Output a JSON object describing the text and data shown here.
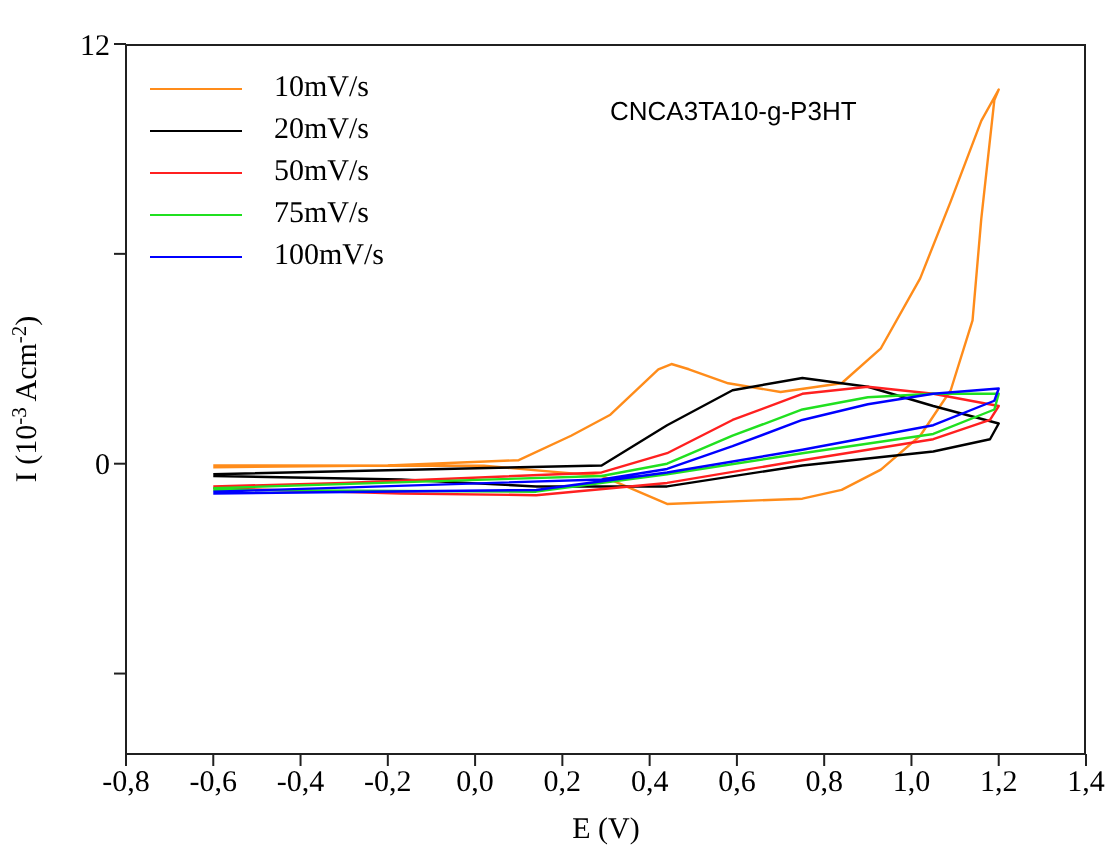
{
  "chart_data": {
    "type": "line",
    "xlabel": "E (V)",
    "ylabel": "I (10$^{-3}$ Acm$^{-2}$)",
    "annotations": [
      "CNCA3TA10-g-P3HT"
    ],
    "xlim": [
      -0.8,
      1.4
    ],
    "xticks": [
      {
        "value": -0.8,
        "label": "-0,8"
      },
      {
        "value": -0.6,
        "label": "-0,6"
      },
      {
        "value": -0.4,
        "label": "-0,4"
      },
      {
        "value": -0.2,
        "label": "-0,2"
      },
      {
        "value": 0,
        "label": "0,0"
      },
      {
        "value": 0.2,
        "label": "0,2"
      },
      {
        "value": 0.4,
        "label": "0,4"
      },
      {
        "value": 0.6,
        "label": "0,6"
      },
      {
        "value": 0.8,
        "label": "0,8"
      },
      {
        "value": 1.0,
        "label": "1,0"
      },
      {
        "value": 1.2,
        "label": "1,2"
      },
      {
        "value": 1.4,
        "label": "1,4"
      }
    ],
    "ylim": [
      -8.3,
      12
    ],
    "yticks": [
      {
        "value": -6,
        "label": null
      },
      0,
      {
        "value": 6,
        "label": null
      },
      12
    ],
    "grid": false,
    "legend": "top left",
    "marker": "none",
    "line_style": "solid",
    "series": [
      {
        "name": "10mV/s",
        "color": "#ff8c1a",
        "x": [
          -0.6,
          -0.2,
          0.1,
          0.22,
          0.31,
          0.42,
          0.45,
          0.49,
          0.58,
          0.7,
          0.84,
          0.93,
          1.02,
          1.09,
          1.16,
          1.2,
          1.19,
          1.16,
          1.14,
          1.09,
          1.02,
          0.93,
          0.84,
          0.75,
          0.44,
          0.29,
          0.02,
          -0.6
        ],
        "values": [
          -0.1,
          -0.05,
          0.1,
          0.8,
          1.4,
          2.7,
          2.85,
          2.7,
          2.3,
          2.05,
          2.3,
          3.3,
          5.3,
          7.5,
          9.8,
          10.7,
          10.4,
          7.0,
          4.1,
          2.1,
          0.8,
          -0.17,
          -0.75,
          -1.0,
          -1.15,
          -0.35,
          -0.06,
          -0.05
        ]
      },
      {
        "name": "20mV/s",
        "color": "#000000",
        "x": [
          -0.6,
          0.29,
          0.44,
          0.59,
          0.75,
          0.9,
          1.05,
          1.2,
          1.18,
          1.05,
          0.75,
          0.44,
          0.14,
          -0.17,
          -0.6
        ],
        "values": [
          -0.3,
          -0.05,
          1.1,
          2.1,
          2.45,
          2.2,
          1.65,
          1.15,
          0.7,
          0.35,
          -0.05,
          -0.65,
          -0.65,
          -0.45,
          -0.35
        ]
      },
      {
        "name": "50mV/s",
        "color": "#ff2020",
        "x": [
          -0.6,
          -0.3,
          0.29,
          0.44,
          0.59,
          0.75,
          0.9,
          1.05,
          1.2,
          1.18,
          1.05,
          0.75,
          0.44,
          0.14,
          -0.17,
          -0.6
        ],
        "values": [
          -0.65,
          -0.55,
          -0.25,
          0.3,
          1.25,
          2.0,
          2.2,
          2.0,
          1.65,
          1.25,
          0.7,
          0.1,
          -0.55,
          -0.9,
          -0.85,
          -0.7
        ]
      },
      {
        "name": "75mV/s",
        "color": "#20e020",
        "x": [
          -0.6,
          0.29,
          0.44,
          0.59,
          0.75,
          0.9,
          1.05,
          1.2,
          1.19,
          1.05,
          0.75,
          0.44,
          0.14,
          -0.6
        ],
        "values": [
          -0.7,
          -0.35,
          0.0,
          0.8,
          1.55,
          1.9,
          2.0,
          2.0,
          1.55,
          0.85,
          0.3,
          -0.3,
          -0.8,
          -0.75
        ]
      },
      {
        "name": "100mV/s",
        "color": "#0000ff",
        "x": [
          -0.6,
          0.29,
          0.44,
          0.59,
          0.75,
          0.9,
          1.05,
          1.2,
          1.19,
          1.05,
          0.75,
          0.44,
          0.14,
          -0.6
        ],
        "values": [
          -0.8,
          -0.45,
          -0.15,
          0.5,
          1.25,
          1.7,
          2.0,
          2.15,
          1.8,
          1.1,
          0.4,
          -0.25,
          -0.75,
          -0.85
        ]
      }
    ]
  }
}
